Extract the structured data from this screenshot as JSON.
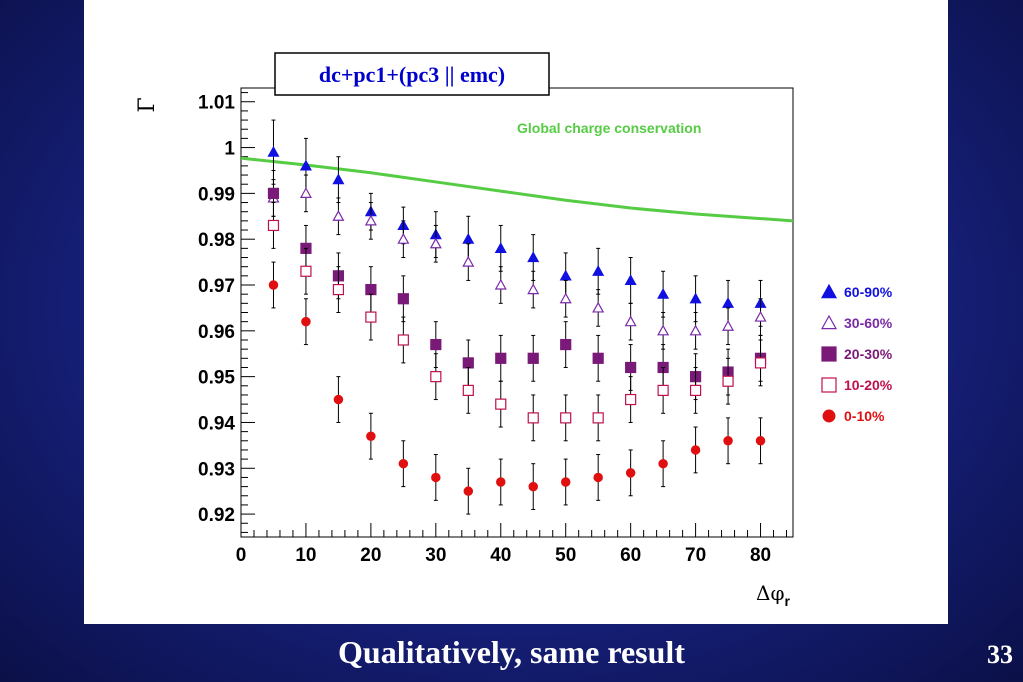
{
  "slide": {
    "caption": "Qualitatively, same result",
    "number": "33"
  },
  "colors": {
    "c60_90": "#1010e0",
    "c30_60": "#7a2aa8",
    "c20_30": "#7a1a78",
    "c10_20": "#c01050",
    "c0_10": "#e01010",
    "global": "#55cc44"
  },
  "chart_data": {
    "type": "scatter",
    "title": "dc+pc1+(pc3 || emc)",
    "xlabel": "Δφ",
    "xlabel_sub": "r",
    "ylabel": "Γ",
    "xlim": [
      0,
      85
    ],
    "ylim": [
      0.915,
      1.013
    ],
    "x_ticks": [
      0,
      10,
      20,
      30,
      40,
      50,
      60,
      70,
      80
    ],
    "y_ticks": [
      "0.92",
      "0.93",
      "0.94",
      "0.95",
      "0.96",
      "0.97",
      "0.98",
      "0.99",
      "1",
      "1.01"
    ],
    "grid": false,
    "legend_position": "right",
    "annotation": "Global charge conservation",
    "global_curve": {
      "name": "Global charge conservation",
      "x": [
        0,
        10,
        20,
        30,
        40,
        50,
        60,
        70,
        80,
        85
      ],
      "y": [
        0.9977,
        0.9962,
        0.9945,
        0.9925,
        0.9905,
        0.9885,
        0.9868,
        0.9855,
        0.9845,
        0.984
      ]
    },
    "x": [
      5,
      10,
      15,
      20,
      25,
      30,
      35,
      40,
      45,
      50,
      55,
      60,
      65,
      70,
      75,
      80
    ],
    "series": [
      {
        "name": "60-90%",
        "marker": "filled-triangle",
        "color": "#1010e0",
        "values": [
          0.999,
          0.996,
          0.993,
          0.986,
          0.983,
          0.981,
          0.98,
          0.978,
          0.976,
          0.972,
          0.973,
          0.971,
          0.968,
          0.967,
          0.966,
          0.966
        ],
        "errors": [
          0.007,
          0.006,
          0.005,
          0.004,
          0.004,
          0.005,
          0.005,
          0.005,
          0.005,
          0.005,
          0.005,
          0.005,
          0.005,
          0.005,
          0.005,
          0.005
        ]
      },
      {
        "name": "30-60%",
        "marker": "open-triangle",
        "color": "#7a2aa8",
        "values": [
          0.989,
          0.99,
          0.985,
          0.984,
          0.98,
          0.979,
          0.975,
          0.97,
          0.969,
          0.967,
          0.965,
          0.962,
          0.96,
          0.96,
          0.961,
          0.963
        ],
        "errors": [
          0.004,
          0.004,
          0.004,
          0.004,
          0.004,
          0.004,
          0.004,
          0.004,
          0.004,
          0.004,
          0.004,
          0.004,
          0.004,
          0.004,
          0.004,
          0.004
        ]
      },
      {
        "name": "20-30%",
        "marker": "filled-square",
        "color": "#7a1a78",
        "values": [
          0.99,
          0.978,
          0.972,
          0.969,
          0.967,
          0.957,
          0.953,
          0.954,
          0.954,
          0.957,
          0.954,
          0.952,
          0.952,
          0.95,
          0.951,
          0.954
        ],
        "errors": [
          0.005,
          0.005,
          0.005,
          0.005,
          0.005,
          0.005,
          0.005,
          0.005,
          0.005,
          0.005,
          0.005,
          0.005,
          0.005,
          0.005,
          0.005,
          0.005
        ]
      },
      {
        "name": "10-20%",
        "marker": "open-square",
        "color": "#c01050",
        "values": [
          0.983,
          0.973,
          0.969,
          0.963,
          0.958,
          0.95,
          0.947,
          0.944,
          0.941,
          0.941,
          0.941,
          0.945,
          0.947,
          0.947,
          0.949,
          0.953
        ],
        "errors": [
          0.005,
          0.005,
          0.005,
          0.005,
          0.005,
          0.005,
          0.005,
          0.005,
          0.005,
          0.005,
          0.005,
          0.005,
          0.005,
          0.005,
          0.005,
          0.005
        ]
      },
      {
        "name": "0-10%",
        "marker": "filled-circle",
        "color": "#e01010",
        "values": [
          0.97,
          0.962,
          0.945,
          0.937,
          0.931,
          0.928,
          0.925,
          0.927,
          0.926,
          0.927,
          0.928,
          0.929,
          0.931,
          0.934,
          0.936,
          0.936
        ],
        "errors": [
          0.005,
          0.005,
          0.005,
          0.005,
          0.005,
          0.005,
          0.005,
          0.005,
          0.005,
          0.005,
          0.005,
          0.005,
          0.005,
          0.005,
          0.005,
          0.005
        ]
      }
    ]
  }
}
